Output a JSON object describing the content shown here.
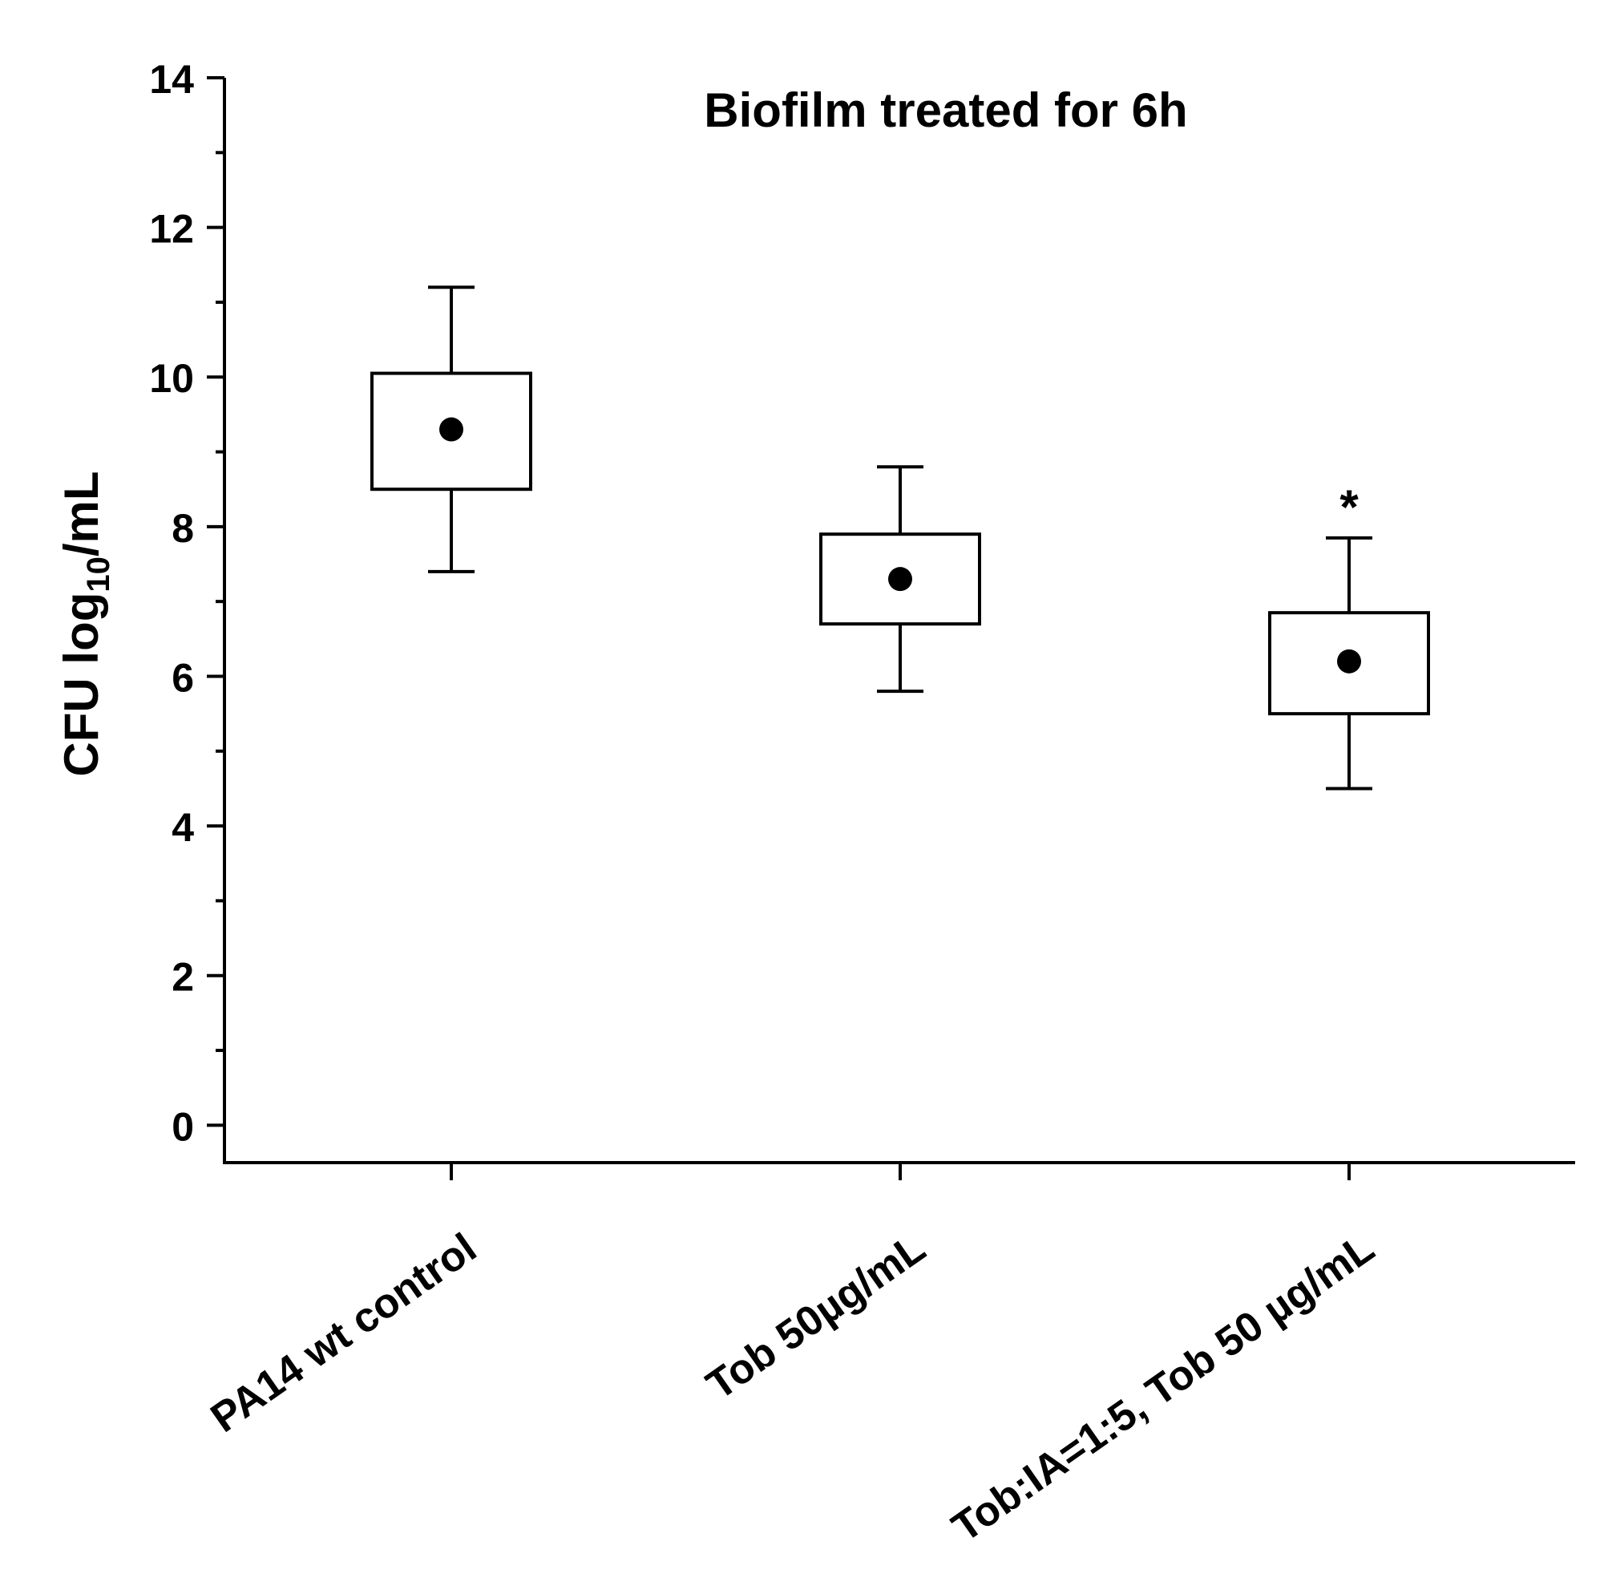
{
  "chart_data": {
    "type": "box",
    "title": "Biofilm treated for 6h",
    "ylabel": {
      "prefix": "CFU log",
      "subscript": "10",
      "suffix": "/mL"
    },
    "xlabel": "",
    "ylim": [
      -0.5,
      14
    ],
    "yticks": [
      0,
      2,
      4,
      6,
      8,
      10,
      12,
      14
    ],
    "yticklabels": [
      "0",
      "2",
      "4",
      "6",
      "8",
      "10",
      "12",
      "14"
    ],
    "grid": false,
    "categories": [
      "PA14 wt control",
      "Tob 50µg/mL",
      "Tob:IA=1:5, Tob 50 µg/mL"
    ],
    "boxes": [
      {
        "whisker_low": 7.4,
        "q1": 8.5,
        "mean": 9.3,
        "q3": 10.05,
        "whisker_high": 11.2,
        "annotation": ""
      },
      {
        "whisker_low": 5.8,
        "q1": 6.7,
        "mean": 7.3,
        "q3": 7.9,
        "whisker_high": 8.8,
        "annotation": ""
      },
      {
        "whisker_low": 4.5,
        "q1": 5.5,
        "mean": 6.2,
        "q3": 6.85,
        "whisker_high": 7.85,
        "annotation": "*"
      }
    ]
  }
}
